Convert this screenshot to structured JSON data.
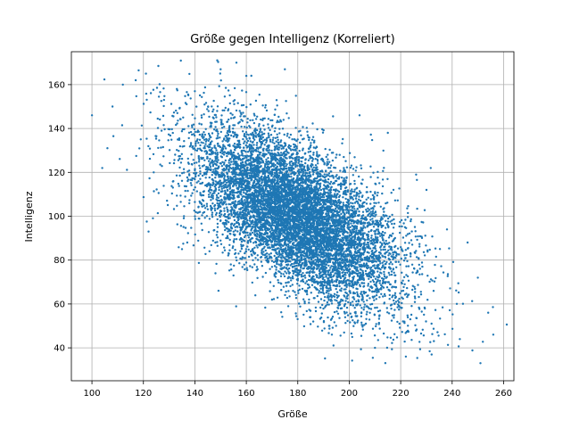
{
  "chart_data": {
    "type": "scatter",
    "title": "Größe gegen Intelligenz (Korreliert)",
    "xlabel": "Größe",
    "ylabel": "Intelligenz",
    "xlim": [
      92,
      264
    ],
    "ylim": [
      25,
      175
    ],
    "xticks": [
      100,
      120,
      140,
      160,
      180,
      200,
      220,
      240,
      260
    ],
    "yticks": [
      40,
      60,
      80,
      100,
      120,
      140,
      160
    ],
    "grid": true,
    "marker_color": "#1f77b4",
    "series": [
      {
        "distribution": "bivariate normal",
        "center": [
          180,
          100
        ],
        "std": [
          20,
          20
        ],
        "correlation": -0.6,
        "points": [
          [
            100,
            146
          ],
          [
            104,
            122
          ],
          [
            106,
            131
          ],
          [
            108,
            150
          ],
          [
            112,
            160
          ],
          [
            117,
            162
          ],
          [
            121,
            165
          ],
          [
            124,
            120
          ],
          [
            128,
            153
          ],
          [
            133,
            158
          ],
          [
            140,
            157
          ],
          [
            150,
            167
          ],
          [
            160,
            164
          ],
          [
            175,
            167
          ],
          [
            204,
            146
          ],
          [
            215,
            138
          ],
          [
            226,
            119
          ],
          [
            230,
            112
          ],
          [
            238,
            94
          ],
          [
            246,
            88
          ],
          [
            250,
            72
          ],
          [
            254,
            56
          ],
          [
            256,
            46
          ],
          [
            251,
            33
          ],
          [
            243,
            44
          ],
          [
            232,
            51
          ],
          [
            222,
            36
          ],
          [
            210,
            40
          ],
          [
            198,
            47
          ],
          [
            186,
            52
          ],
          [
            170,
            62
          ],
          [
            155,
            73
          ],
          [
            148,
            74
          ],
          [
            135,
            85
          ],
          [
            122,
            93
          ]
        ]
      }
    ]
  }
}
